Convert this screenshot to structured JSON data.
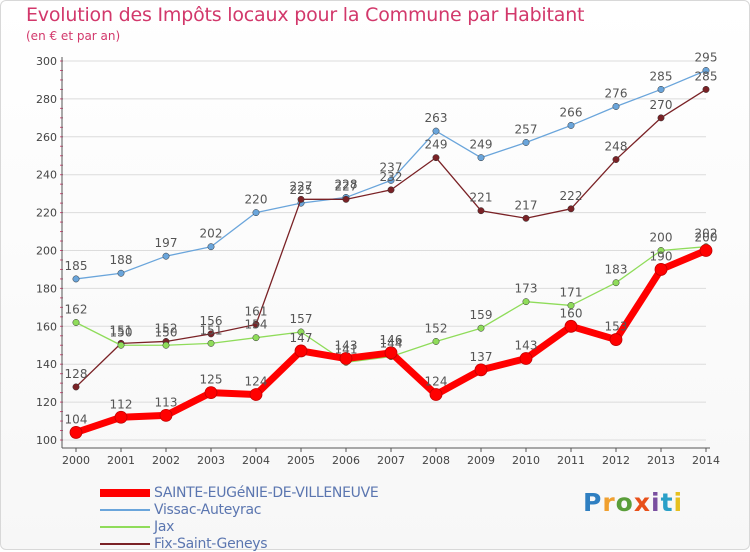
{
  "header": {
    "title": "Evolution des Impôts locaux pour la Commune par Habitant",
    "subtitle": "(en € et par an)"
  },
  "logo": {
    "text": "Proxiti",
    "letters": [
      "P",
      "r",
      "o",
      "x",
      "i",
      "t",
      "i"
    ],
    "colors": [
      "#2f7fc1",
      "#f0a030",
      "#5a9e3a",
      "#e8501a",
      "#7a4fa0",
      "#2aa0c8",
      "#e6c020"
    ]
  },
  "chart_data": {
    "type": "line",
    "title": "Evolution des Impôts locaux pour la Commune par Habitant",
    "subtitle": "(en € et par an)",
    "xlabel": "",
    "ylabel": "",
    "ylim": [
      100,
      300
    ],
    "yticks": [
      100,
      120,
      140,
      160,
      180,
      200,
      220,
      240,
      260,
      280,
      300
    ],
    "grid": true,
    "legend_position": "bottom-left",
    "x": [
      "2000",
      "2001",
      "2002",
      "2003",
      "2004",
      "2005",
      "2006",
      "2007",
      "2008",
      "2009",
      "2010",
      "2011",
      "2012",
      "2013",
      "2014"
    ],
    "series": [
      {
        "name": "SAINTE-EUGéNIE-DE-VILLENEUVE",
        "color": "#ff0000",
        "values": [
          104,
          112,
          113,
          125,
          124,
          147,
          143,
          146,
          124,
          137,
          143,
          160,
          153,
          190,
          200
        ]
      },
      {
        "name": "Vissac-Auteyrac",
        "color": "#6aa5db",
        "values": [
          185,
          188,
          197,
          202,
          220,
          225,
          228,
          237,
          263,
          249,
          257,
          266,
          276,
          285,
          295
        ]
      },
      {
        "name": "Jax",
        "color": "#8fdc5a",
        "values": [
          162,
          150,
          150,
          151,
          154,
          157,
          141,
          144,
          152,
          159,
          173,
          171,
          183,
          200,
          202
        ]
      },
      {
        "name": "Fix-Saint-Geneys",
        "color": "#7a2226",
        "values": [
          128,
          151,
          152,
          156,
          161,
          227,
          227,
          232,
          249,
          221,
          217,
          222,
          248,
          270,
          285
        ]
      }
    ]
  }
}
